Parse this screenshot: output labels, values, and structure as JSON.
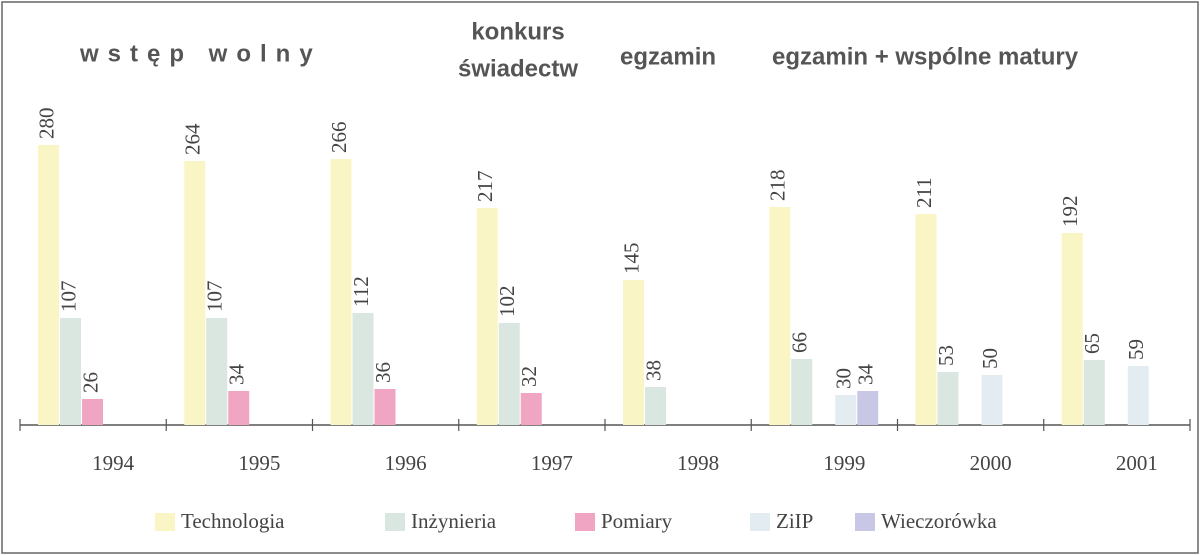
{
  "chart_data": {
    "type": "bar",
    "annotations": [
      "wstęp wolny",
      "konkurs",
      "świadectw",
      "egzamin",
      "egzamin + wspólne matury"
    ],
    "categories": [
      "1994",
      "1995",
      "1996",
      "1997",
      "1998",
      "1999",
      "2000",
      "2001"
    ],
    "series": [
      {
        "name": "Technologia",
        "color": "#f9f5c4",
        "values": [
          280,
          264,
          266,
          217,
          145,
          218,
          211,
          192
        ]
      },
      {
        "name": "Inżynieria",
        "color": "#dae7e1",
        "values": [
          107,
          107,
          112,
          102,
          38,
          66,
          53,
          65
        ]
      },
      {
        "name": "Pomiary",
        "color": "#f0a6c3",
        "values": [
          26,
          34,
          36,
          32,
          null,
          null,
          null,
          null
        ]
      },
      {
        "name": "ZiIP",
        "color": "#e3ecf1",
        "values": [
          null,
          null,
          null,
          null,
          null,
          30,
          50,
          59
        ]
      },
      {
        "name": "Wieczorówka",
        "color": "#c8c7e6",
        "values": [
          null,
          null,
          null,
          null,
          null,
          34,
          null,
          null
        ]
      }
    ],
    "legend": "bottom"
  }
}
